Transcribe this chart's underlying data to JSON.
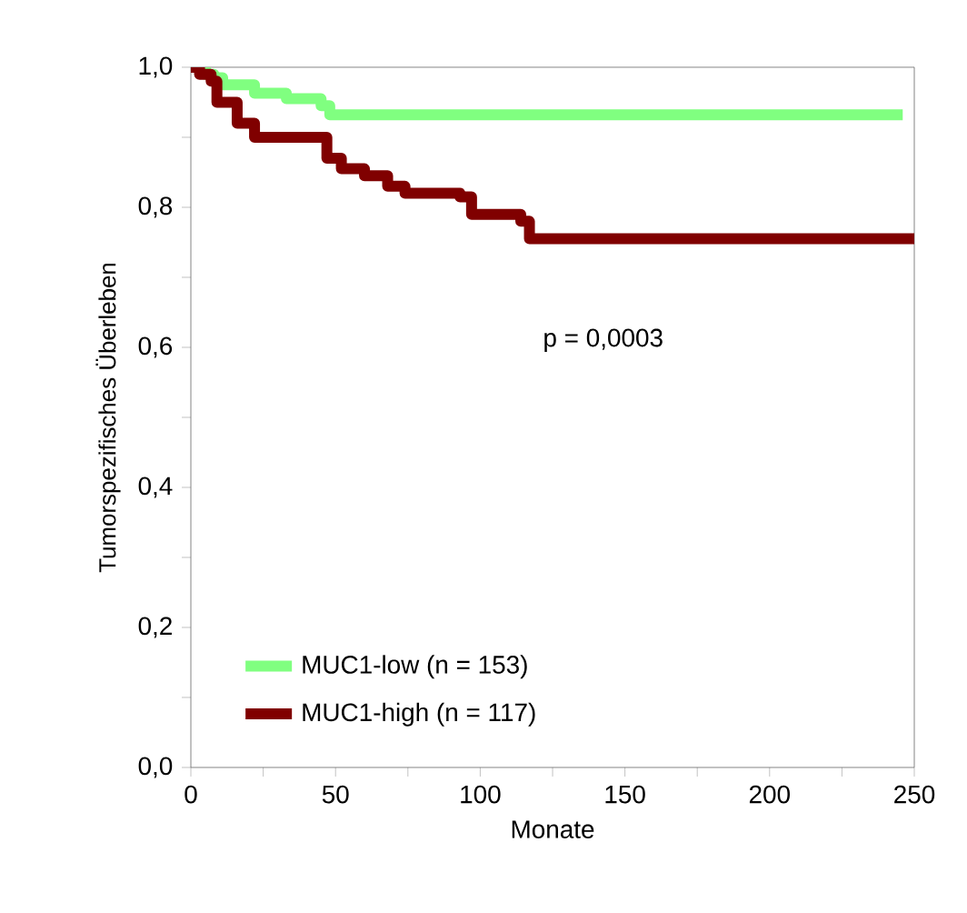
{
  "chart_data": {
    "type": "step",
    "xlabel": "Monate",
    "ylabel": "Tumorspezifisches Überleben",
    "annotations": [
      "p = 0,0003"
    ],
    "xlim": [
      0,
      250
    ],
    "ylim": [
      0,
      1
    ],
    "xticks": [
      0,
      {
        "value": 25,
        "label": null
      },
      50,
      {
        "value": 75,
        "label": null
      },
      100,
      {
        "value": 125,
        "label": null
      },
      150,
      {
        "value": 175,
        "label": null
      },
      200,
      {
        "value": 225,
        "label": null
      },
      250
    ],
    "yticks": [
      {
        "value": 0,
        "label": "0,0"
      },
      {
        "value": 0.1,
        "label": null
      },
      {
        "value": 0.2,
        "label": "0,2"
      },
      {
        "value": 0.3,
        "label": null
      },
      {
        "value": 0.4,
        "label": "0,4"
      },
      {
        "value": 0.5,
        "label": null
      },
      {
        "value": 0.6,
        "label": "0,6"
      },
      {
        "value": 0.7,
        "label": null
      },
      {
        "value": 0.8,
        "label": "0,8"
      },
      {
        "value": 0.9,
        "label": null
      },
      {
        "value": 1.0,
        "label": "1,0"
      }
    ],
    "grid": false,
    "legend": "bottom left",
    "marker": "none",
    "line_style": "solid",
    "series": [
      {
        "name": "MUC1-low (n = 153)",
        "color": "#80ff80",
        "x": [
          0,
          5,
          8,
          11,
          22,
          33,
          45,
          48,
          246
        ],
        "values": [
          1.0,
          0.99,
          0.985,
          0.975,
          0.963,
          0.955,
          0.945,
          0.932,
          0.932
        ]
      },
      {
        "name": "MUC1-high (n = 117)",
        "color": "#800000",
        "x": [
          0,
          3,
          7,
          9,
          16,
          22,
          41,
          47,
          52,
          60,
          68,
          74,
          93,
          97,
          114,
          117,
          250
        ],
        "values": [
          1.0,
          0.99,
          0.98,
          0.95,
          0.92,
          0.9,
          0.9,
          0.87,
          0.855,
          0.845,
          0.83,
          0.82,
          0.815,
          0.79,
          0.78,
          0.755,
          0.755
        ]
      }
    ]
  }
}
